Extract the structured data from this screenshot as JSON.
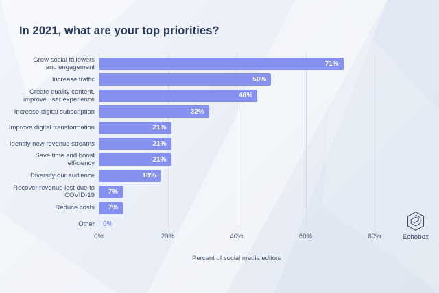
{
  "chart_data": {
    "type": "bar",
    "orientation": "horizontal",
    "title": "In 2021, what are your top priorities?",
    "categories": [
      "Grow social followers and engagement",
      "Increase traffic",
      "Create quality content, improve user experience",
      "Increase digital subscription",
      "Improve digital transformation",
      "Identify new revenue streams",
      "Save time and boost efficiency",
      "Diversify our audience",
      "Recover revenue lost due to COVID-19",
      "Reduce costs",
      "Other"
    ],
    "category_lines": [
      [
        "Grow social followers",
        "and engagement"
      ],
      [
        "Increase traffic"
      ],
      [
        "Create quality content,",
        "improve user experience"
      ],
      [
        "Increase digital subscription"
      ],
      [
        "Improve digital transformation"
      ],
      [
        "Identify new revenue streams"
      ],
      [
        "Save time and boost",
        "efficiency"
      ],
      [
        "Diversify our audience"
      ],
      [
        "Recover revenue lost due to",
        "COVID-19"
      ],
      [
        "Reduce costs"
      ],
      [
        "Other"
      ]
    ],
    "values": [
      71,
      50,
      46,
      32,
      21,
      21,
      21,
      18,
      7,
      7,
      0
    ],
    "value_labels": [
      "71%",
      "50%",
      "46%",
      "32%",
      "21%",
      "21%",
      "21%",
      "18%",
      "7%",
      "7%",
      "0%"
    ],
    "xlabel": "Percent of social media editors",
    "xticks": [
      {
        "value": 0,
        "label": "0%"
      },
      {
        "value": 20,
        "label": "20%"
      },
      {
        "value": 40,
        "label": "40%"
      },
      {
        "value": 60,
        "label": "60%"
      },
      {
        "value": 80,
        "label": "80%"
      }
    ],
    "xlim": [
      0,
      80
    ],
    "grid": true,
    "legend": null,
    "colors": {
      "bar": "#8690ee",
      "value_label_inside": "#ffffff",
      "value_label_outside": "#8690ee",
      "title": "#27395d",
      "labels": "#414f6b"
    }
  },
  "branding": {
    "logo_label": "Echobox",
    "logo_icon": "echobox-hexagon-icon"
  }
}
